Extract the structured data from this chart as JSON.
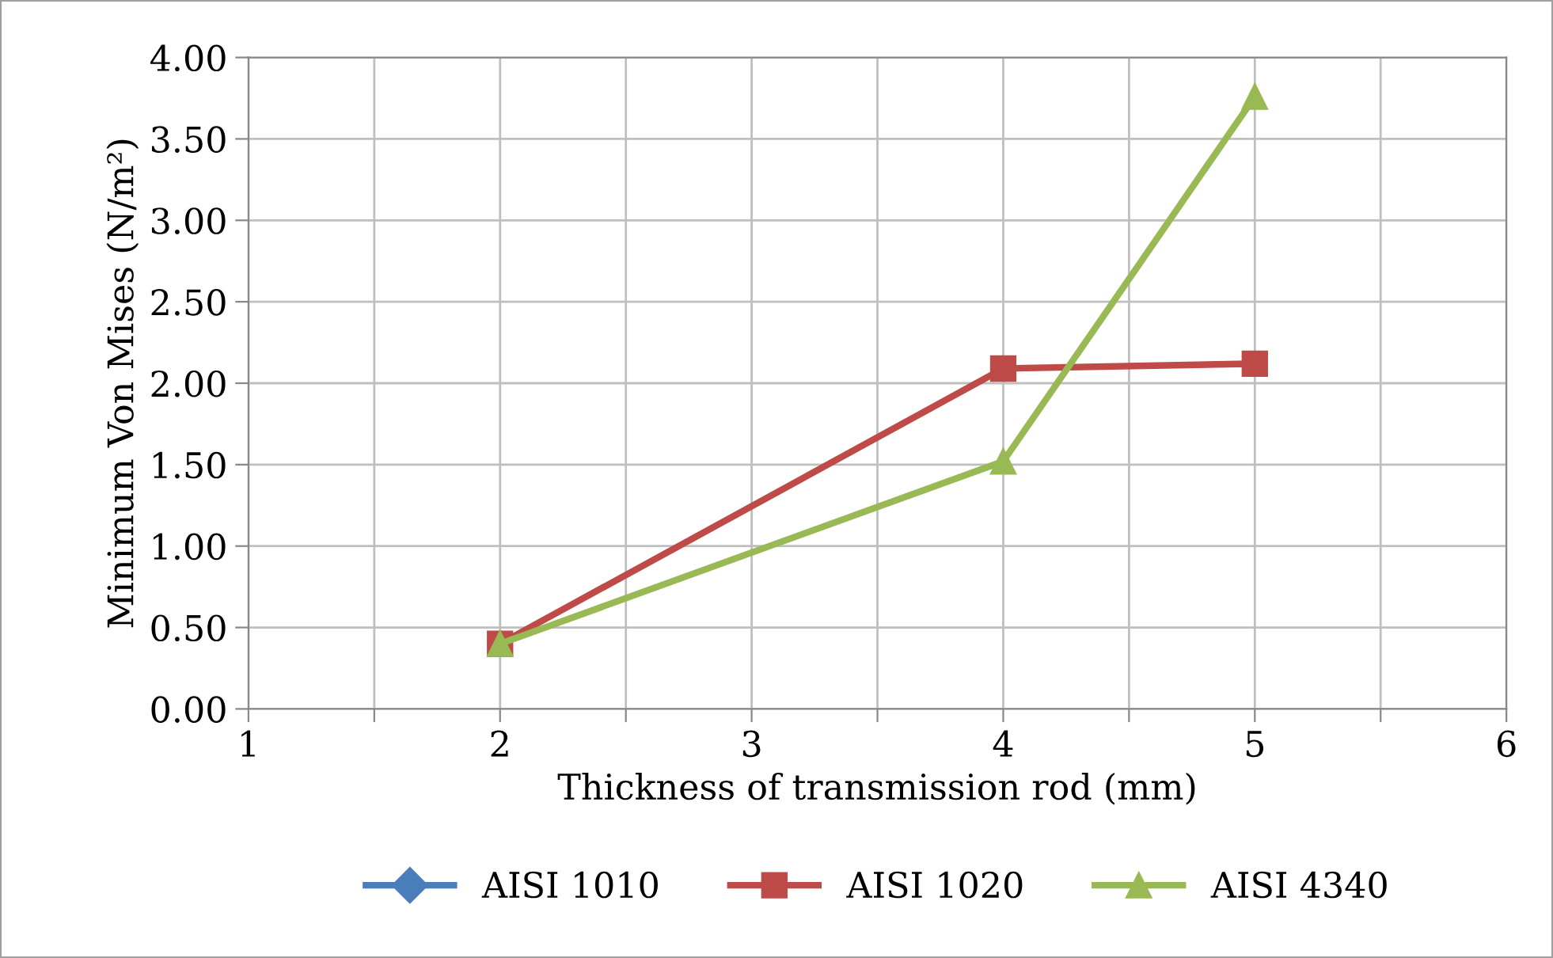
{
  "chart_data": {
    "type": "line",
    "xlabel": "Thickness of transmission rod (mm)",
    "ylabel": "Minimum Von Mises (N/m²)",
    "x": [
      2,
      4,
      5
    ],
    "series": [
      {
        "name": "AISI 1010",
        "color": "#4a7ebb",
        "marker": "diamond",
        "values": [
          null,
          null,
          null
        ]
      },
      {
        "name": "AISI 1020",
        "color": "#be4b48",
        "marker": "square",
        "values": [
          0.4,
          2.09,
          2.12
        ]
      },
      {
        "name": "AISI 4340",
        "color": "#98b954",
        "marker": "triangle",
        "values": [
          0.4,
          1.52,
          3.76
        ]
      }
    ],
    "xlim": [
      1,
      6
    ],
    "ylim": [
      0,
      4
    ],
    "xticks": [
      1,
      {
        "value": 1.5,
        "label": null
      },
      2,
      {
        "value": 2.5,
        "label": null
      },
      3,
      {
        "value": 3.5,
        "label": null
      },
      4,
      {
        "value": 4.5,
        "label": null
      },
      5,
      {
        "value": 5.5,
        "label": null
      },
      6
    ],
    "yticks": [
      {
        "value": 0,
        "label": "0.00"
      },
      {
        "value": 0.5,
        "label": "0.50"
      },
      {
        "value": 1,
        "label": "1.00"
      },
      {
        "value": 1.5,
        "label": "1.50"
      },
      {
        "value": 2,
        "label": "2.00"
      },
      {
        "value": 2.5,
        "label": "2.50"
      },
      {
        "value": 3,
        "label": "3.00"
      },
      {
        "value": 3.5,
        "label": "3.50"
      },
      {
        "value": 4,
        "label": "4.00"
      }
    ],
    "grid": true,
    "legend": "bottom",
    "line_style": "solid"
  }
}
